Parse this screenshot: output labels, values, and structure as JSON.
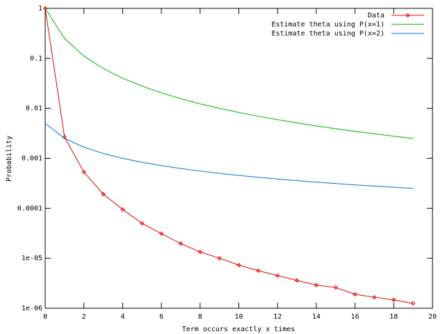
{
  "chart_data": {
    "type": "line",
    "xlabel": "Term occurs exactly x times",
    "ylabel": "Probability",
    "log_y": true,
    "legend": "top right",
    "x": [
      0,
      1,
      2,
      3,
      4,
      5,
      6,
      7,
      8,
      9,
      10,
      11,
      12,
      13,
      14,
      15,
      16,
      17,
      18,
      19
    ],
    "xlim": [
      0,
      20
    ],
    "xticks": [
      0,
      2,
      4,
      6,
      8,
      10,
      12,
      14,
      16,
      18,
      20
    ],
    "ylim": [
      1e-06,
      1
    ],
    "yticks": [
      1,
      0.1,
      0.01,
      0.001,
      0.0001,
      {
        "value": 1e-05,
        "label": "1e-05"
      },
      {
        "value": 1e-06,
        "label": "1e-06"
      }
    ],
    "series": [
      {
        "name": "Data",
        "color": "#e00000",
        "points": true,
        "values": [
          1,
          0.00265,
          0.00053,
          0.000192,
          9.5e-05,
          5e-05,
          3.1e-05,
          1.97e-05,
          1.34e-05,
          1e-05,
          7.3e-06,
          5.65e-06,
          4.5e-06,
          3.6e-06,
          2.9e-06,
          2.6e-06,
          1.9e-06,
          1.66e-06,
          1.47e-06,
          1.25e-06
        ]
      },
      {
        "name": "Estimate theta using P(x=1)",
        "color": "#00b000",
        "points": false,
        "values": [
          1,
          0.25,
          0.111,
          0.0625,
          0.04,
          0.0278,
          0.0204,
          0.0156,
          0.0123,
          0.01,
          0.00826,
          0.00694,
          0.00592,
          0.0051,
          0.00444,
          0.0039,
          0.00346,
          0.00309,
          0.00277,
          0.0025
        ]
      },
      {
        "name": "Estimate theta using P(x=2)",
        "color": "#0070d0",
        "points": false,
        "values": [
          0.005,
          0.0025,
          0.00167,
          0.00125,
          0.001,
          0.000833,
          0.000714,
          0.000625,
          0.000556,
          0.0005,
          0.000455,
          0.000417,
          0.000385,
          0.000357,
          0.000333,
          0.000313,
          0.000294,
          0.000278,
          0.000263,
          0.00025
        ]
      }
    ]
  }
}
